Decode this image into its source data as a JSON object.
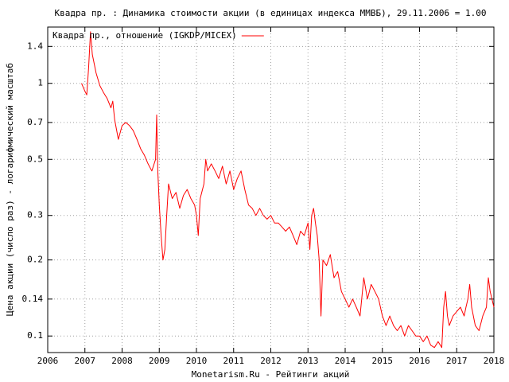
{
  "chart_data": {
    "type": "line",
    "title": "Квадра пр. : Динамика стоимости акции (в единицах индекса ММВБ), 29.11.2006 = 1.00",
    "x_label": "Monetarism.Ru - Рейтинги акций",
    "y_label": "Цена акции (число раз) - логарифмический масштаб",
    "log_y": true,
    "grid": true,
    "legend": "top-left",
    "xlim": [
      2006,
      2018
    ],
    "xticks": [
      2006,
      2007,
      2008,
      2009,
      2010,
      2011,
      2012,
      2013,
      2014,
      2015,
      2016,
      2017,
      2018
    ],
    "ylim": [
      0.086,
      1.67
    ],
    "yticks": [
      0.1,
      0.14,
      0.2,
      0.3,
      0.5,
      0.7,
      1,
      1.4
    ],
    "x": [
      2006.91,
      2007.0,
      2007.05,
      2007.1,
      2007.15,
      2007.2,
      2007.3,
      2007.4,
      2007.5,
      2007.6,
      2007.7,
      2007.75,
      2007.8,
      2007.9,
      2008.0,
      2008.1,
      2008.2,
      2008.3,
      2008.4,
      2008.5,
      2008.6,
      2008.7,
      2008.8,
      2008.9,
      2008.93,
      2008.96,
      2009.0,
      2009.05,
      2009.1,
      2009.15,
      2009.2,
      2009.25,
      2009.35,
      2009.45,
      2009.55,
      2009.65,
      2009.75,
      2009.85,
      2009.95,
      2010.0,
      2010.05,
      2010.1,
      2010.2,
      2010.25,
      2010.3,
      2010.4,
      2010.5,
      2010.6,
      2010.7,
      2010.8,
      2010.9,
      2011.0,
      2011.1,
      2011.2,
      2011.3,
      2011.4,
      2011.5,
      2011.6,
      2011.7,
      2011.8,
      2011.9,
      2012.0,
      2012.1,
      2012.2,
      2012.3,
      2012.4,
      2012.5,
      2012.6,
      2012.7,
      2012.8,
      2012.9,
      2013.0,
      2013.05,
      2013.1,
      2013.15,
      2013.2,
      2013.25,
      2013.3,
      2013.35,
      2013.4,
      2013.5,
      2013.6,
      2013.7,
      2013.8,
      2013.9,
      2014.0,
      2014.1,
      2014.2,
      2014.3,
      2014.4,
      2014.5,
      2014.6,
      2014.7,
      2014.8,
      2014.9,
      2015.0,
      2015.1,
      2015.2,
      2015.3,
      2015.4,
      2015.5,
      2015.6,
      2015.7,
      2015.8,
      2015.9,
      2016.0,
      2016.1,
      2016.2,
      2016.3,
      2016.4,
      2016.5,
      2016.6,
      2016.65,
      2016.7,
      2016.75,
      2016.8,
      2016.9,
      2017.0,
      2017.1,
      2017.2,
      2017.25,
      2017.3,
      2017.35,
      2017.4,
      2017.5,
      2017.6,
      2017.7,
      2017.8,
      2017.85,
      2017.9,
      2018.0
    ],
    "series": [
      {
        "name": "Квадра пр., отношение (IGKDP/MICEX)",
        "color": "#ff0000",
        "values": [
          1.0,
          0.93,
          0.9,
          1.15,
          1.6,
          1.3,
          1.1,
          0.98,
          0.92,
          0.87,
          0.8,
          0.85,
          0.72,
          0.6,
          0.68,
          0.7,
          0.68,
          0.65,
          0.6,
          0.55,
          0.52,
          0.48,
          0.45,
          0.5,
          0.75,
          0.45,
          0.33,
          0.25,
          0.2,
          0.22,
          0.3,
          0.4,
          0.35,
          0.37,
          0.32,
          0.36,
          0.38,
          0.35,
          0.33,
          0.3,
          0.25,
          0.35,
          0.4,
          0.5,
          0.45,
          0.48,
          0.45,
          0.42,
          0.47,
          0.4,
          0.45,
          0.38,
          0.42,
          0.45,
          0.38,
          0.33,
          0.32,
          0.3,
          0.32,
          0.3,
          0.29,
          0.3,
          0.28,
          0.28,
          0.27,
          0.26,
          0.27,
          0.25,
          0.23,
          0.26,
          0.25,
          0.28,
          0.22,
          0.3,
          0.32,
          0.28,
          0.25,
          0.2,
          0.12,
          0.2,
          0.19,
          0.21,
          0.17,
          0.18,
          0.15,
          0.14,
          0.13,
          0.14,
          0.13,
          0.12,
          0.17,
          0.14,
          0.16,
          0.15,
          0.14,
          0.12,
          0.11,
          0.12,
          0.11,
          0.105,
          0.11,
          0.1,
          0.11,
          0.105,
          0.1,
          0.1,
          0.095,
          0.1,
          0.092,
          0.09,
          0.095,
          0.09,
          0.13,
          0.15,
          0.12,
          0.11,
          0.12,
          0.125,
          0.13,
          0.12,
          0.13,
          0.14,
          0.16,
          0.13,
          0.11,
          0.105,
          0.12,
          0.13,
          0.17,
          0.15,
          0.13
        ]
      }
    ]
  }
}
